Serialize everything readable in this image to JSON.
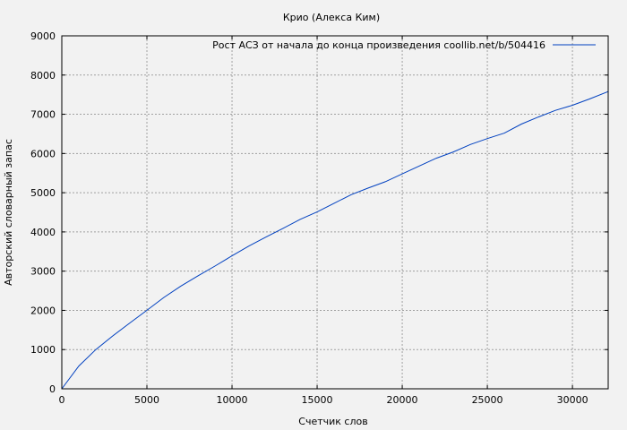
{
  "chart_data": {
    "type": "line",
    "title": "Крио (Алекса Ким)",
    "xlabel": "Счетчик слов",
    "ylabel": "Авторский словарный запас",
    "xlim": [
      0,
      32100
    ],
    "ylim": [
      0,
      9000
    ],
    "xticks": [
      0,
      5000,
      10000,
      15000,
      20000,
      25000,
      30000
    ],
    "yticks": [
      0,
      1000,
      2000,
      3000,
      4000,
      5000,
      6000,
      7000,
      8000,
      9000
    ],
    "grid": true,
    "legend_position": "top-right",
    "colors": {
      "line": "#0040c0",
      "background": "#f2f2f2",
      "grid": "#a0a0a0"
    },
    "series": [
      {
        "name": "Рост АСЗ от начала до конца произведения  coollib.net/b/504416",
        "x": [
          0,
          1000,
          2000,
          3000,
          4000,
          5000,
          6000,
          7000,
          8000,
          9000,
          10000,
          11000,
          12000,
          13000,
          14000,
          15000,
          16000,
          17000,
          18000,
          19000,
          20000,
          21000,
          22000,
          23000,
          24000,
          25000,
          26000,
          27000,
          28000,
          29000,
          30000,
          31000,
          32100
        ],
        "y": [
          0,
          580,
          1000,
          1350,
          1680,
          2000,
          2330,
          2620,
          2880,
          3130,
          3390,
          3640,
          3870,
          4090,
          4320,
          4510,
          4730,
          4950,
          5120,
          5280,
          5480,
          5680,
          5880,
          6040,
          6230,
          6380,
          6520,
          6750,
          6930,
          7100,
          7230,
          7390,
          7580
        ]
      }
    ]
  }
}
